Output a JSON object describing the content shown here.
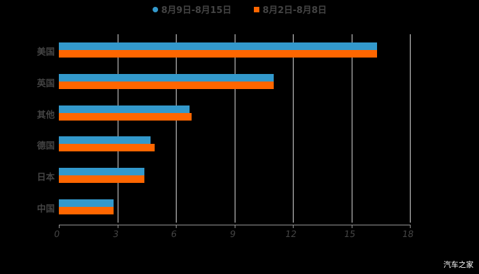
{
  "legend": [
    {
      "label": "8月9日-8月15日",
      "color": "#3399CC",
      "shape": "circle"
    },
    {
      "label": "8月2日-8月8日",
      "color": "#FF6600",
      "shape": "square"
    }
  ],
  "axis": {
    "ticks": [
      "0",
      "3",
      "6",
      "9",
      "12",
      "15",
      "18"
    ]
  },
  "categories": [
    "美国",
    "英国",
    "其他",
    "德国",
    "日本",
    "中国"
  ],
  "watermark": "汽车之家",
  "chart_data": {
    "type": "bar",
    "orientation": "horizontal",
    "title": "",
    "categories": [
      "美国",
      "英国",
      "其他",
      "德国",
      "日本",
      "中国"
    ],
    "series": [
      {
        "name": "8月9日-8月15日",
        "color": "#3399CC",
        "values": [
          16.3,
          11.0,
          6.7,
          4.7,
          4.4,
          2.8
        ]
      },
      {
        "name": "8月2日-8月8日",
        "color": "#FF6600",
        "values": [
          16.3,
          11.0,
          6.8,
          4.9,
          4.4,
          2.8
        ]
      }
    ],
    "xlabel": "",
    "ylabel": "",
    "xlim": [
      0,
      18
    ],
    "xticks": [
      0,
      3,
      6,
      9,
      12,
      15,
      18
    ],
    "grid": true,
    "legend_position": "top"
  }
}
